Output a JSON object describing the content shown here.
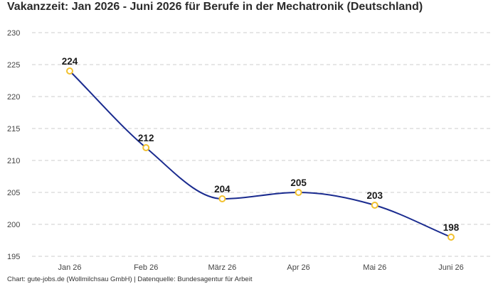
{
  "title": "Vakanzzeit: Jan 2026 - Juni 2026 für Berufe in der Mechatronik (Deutschland)",
  "footer": "Chart: gute-jobs.de (Wollmilchsau GmbH) | Datenquelle: Bundesagentur für Arbeit",
  "colors": {
    "line": "#1a2b8f",
    "marker_stroke": "#f2c12e",
    "marker_fill": "#ffffff",
    "grid": "#cccccc"
  },
  "chart_data": {
    "type": "line",
    "title": "Vakanzzeit: Jan 2026 - Juni 2026 für Berufe in der Mechatronik (Deutschland)",
    "xlabel": "",
    "ylabel": "",
    "categories": [
      "Jan 26",
      "Feb 26",
      "März 26",
      "Apr 26",
      "Mai 26",
      "Juni 26"
    ],
    "series": [
      {
        "values": [
          224,
          212,
          204,
          205,
          203,
          198
        ]
      }
    ],
    "data_labels": [
      "224",
      "212",
      "204",
      "205",
      "203",
      "198"
    ],
    "yticks": [
      195,
      200,
      205,
      210,
      215,
      220,
      225,
      230
    ],
    "ylim": [
      195,
      230
    ],
    "grid": "horizontal dashed",
    "legend": "none"
  }
}
